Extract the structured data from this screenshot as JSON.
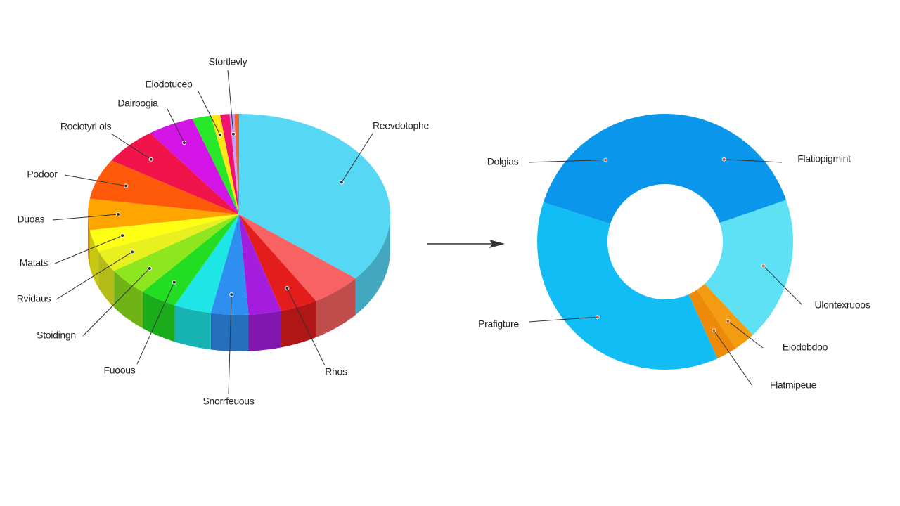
{
  "chart_data": [
    {
      "type": "pie3d",
      "categories": [
        "Reevdotophe",
        null,
        "Rhos",
        null,
        "Snorrfeuous",
        null,
        "Fuoous",
        "Stoidingn",
        "Rvidaus",
        "Matats",
        "Duoas",
        "Podoor",
        "Rociotyrl ols",
        "Dairbogia",
        null,
        "Elodotucep",
        null,
        "Stortlevly",
        null
      ],
      "values": [
        36,
        5.5,
        4,
        3.5,
        4,
        4,
        4,
        4.5,
        3.5,
        3.5,
        5,
        6.5,
        6,
        5,
        2,
        1,
        1,
        0.5,
        0.5
      ],
      "colors": [
        "#56d8f5",
        "#f86262",
        "#e31c1c",
        "#a51ee0",
        "#2f8ff0",
        "#1ee6e6",
        "#22dd22",
        "#8ee61e",
        "#e8f020",
        "#ffff14",
        "#ffa500",
        "#ff5a0a",
        "#f0144a",
        "#d214e6",
        "#28e628",
        "#ffe614",
        "#f0146e",
        "#c8a0ff",
        "#f06432"
      ]
    },
    {
      "type": "donut",
      "categories": [
        "Dolgias",
        "Flatiopigmint",
        "Ulontexruoos",
        "Elodobdoo",
        "Flatmipeue",
        "Prafigture"
      ],
      "values": [
        20,
        19.7,
        18.3,
        2.7,
        2.6,
        36.7
      ],
      "colors": [
        "#0a96eb",
        "#0a96eb",
        "#5ee0f5",
        "#f39c12",
        "#ee8a0a",
        "#12bdf5"
      ]
    }
  ]
}
